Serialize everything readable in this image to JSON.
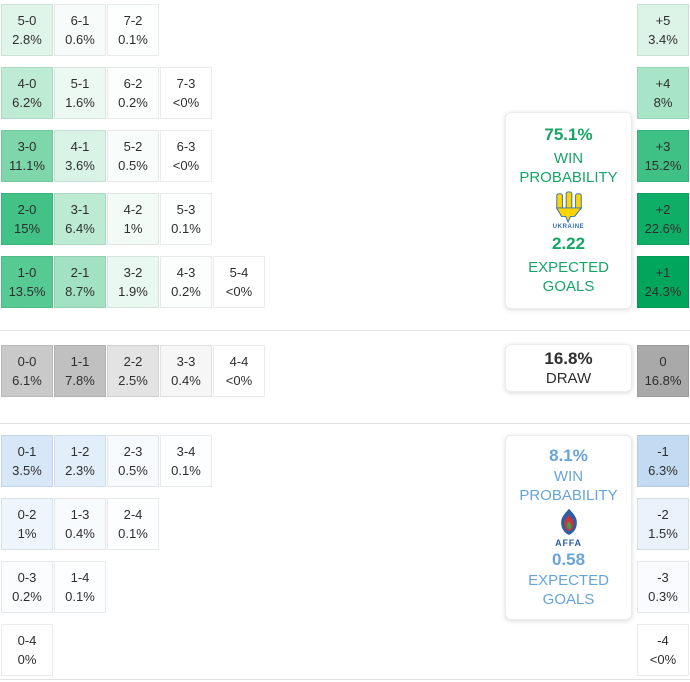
{
  "chart_data": {
    "type": "heatmap",
    "description": "Correct score probability matrix with goal-difference margins",
    "sections": {
      "home": {
        "rows": [
          [
            {
              "score": "5-0",
              "prob": "2.8%",
              "bg": "#e0f5ea"
            },
            {
              "score": "6-1",
              "prob": "0.6%",
              "bg": "#f7fcfa"
            },
            {
              "score": "7-2",
              "prob": "0.1%",
              "bg": "#fdfefe"
            }
          ],
          [
            {
              "score": "4-0",
              "prob": "6.2%",
              "bg": "#beebd3"
            },
            {
              "score": "5-1",
              "prob": "1.6%",
              "bg": "#ecf9f2"
            },
            {
              "score": "6-2",
              "prob": "0.2%",
              "bg": "#fcfefd"
            },
            {
              "score": "7-3",
              "prob": "<0%",
              "bg": "#ffffff"
            }
          ],
          [
            {
              "score": "3-0",
              "prob": "11.1%",
              "bg": "#7ed7ab"
            },
            {
              "score": "4-1",
              "prob": "3.6%",
              "bg": "#d9f3e6"
            },
            {
              "score": "5-2",
              "prob": "0.5%",
              "bg": "#f8fdfb"
            },
            {
              "score": "6-3",
              "prob": "<0%",
              "bg": "#ffffff"
            }
          ],
          [
            {
              "score": "2-0",
              "prob": "15%",
              "bg": "#42c287"
            },
            {
              "score": "3-1",
              "prob": "6.4%",
              "bg": "#bcead2"
            },
            {
              "score": "4-2",
              "prob": "1%",
              "bg": "#f3fbf7"
            },
            {
              "score": "5-3",
              "prob": "0.1%",
              "bg": "#fdfefe"
            }
          ],
          [
            {
              "score": "1-0",
              "prob": "13.5%",
              "bg": "#57ca93"
            },
            {
              "score": "2-1",
              "prob": "8.7%",
              "bg": "#a2e2c2"
            },
            {
              "score": "3-2",
              "prob": "1.9%",
              "bg": "#e9f8f0"
            },
            {
              "score": "4-3",
              "prob": "0.2%",
              "bg": "#fcfefd"
            },
            {
              "score": "5-4",
              "prob": "<0%",
              "bg": "#ffffff"
            }
          ]
        ],
        "margins": [
          {
            "label": "+5",
            "prob": "3.4%",
            "bg": "#dbf4e7"
          },
          {
            "label": "+4",
            "prob": "8%",
            "bg": "#a8e4c6"
          },
          {
            "label": "+3",
            "prob": "15.2%",
            "bg": "#3fc185"
          },
          {
            "label": "+2",
            "prob": "22.6%",
            "bg": "#0fae66"
          },
          {
            "label": "+1",
            "prob": "24.3%",
            "bg": "#00a65c"
          }
        ]
      },
      "draw": {
        "rows": [
          [
            {
              "score": "0-0",
              "prob": "6.1%",
              "bg": "#c9c9c9"
            },
            {
              "score": "1-1",
              "prob": "7.8%",
              "bg": "#c0c0c0"
            },
            {
              "score": "2-2",
              "prob": "2.5%",
              "bg": "#e3e3e3"
            },
            {
              "score": "3-3",
              "prob": "0.4%",
              "bg": "#f6f6f6"
            },
            {
              "score": "4-4",
              "prob": "<0%",
              "bg": "#ffffff"
            }
          ]
        ],
        "margins": [
          {
            "label": "0",
            "prob": "16.8%",
            "bg": "#a9a9a9"
          }
        ]
      },
      "away": {
        "rows": [
          [
            {
              "score": "0-1",
              "prob": "3.5%",
              "bg": "#d7e7f7"
            },
            {
              "score": "1-2",
              "prob": "2.3%",
              "bg": "#e2eef9"
            },
            {
              "score": "2-3",
              "prob": "0.5%",
              "bg": "#f6fafd"
            },
            {
              "score": "3-4",
              "prob": "0.1%",
              "bg": "#fdfeff"
            }
          ],
          [
            {
              "score": "0-2",
              "prob": "1%",
              "bg": "#eef5fc"
            },
            {
              "score": "1-3",
              "prob": "0.4%",
              "bg": "#f7fbfe"
            },
            {
              "score": "2-4",
              "prob": "0.1%",
              "bg": "#fdfeff"
            }
          ],
          [
            {
              "score": "0-3",
              "prob": "0.2%",
              "bg": "#fbfcfe"
            },
            {
              "score": "1-4",
              "prob": "0.1%",
              "bg": "#fdfeff"
            }
          ],
          [
            {
              "score": "0-4",
              "prob": "0%",
              "bg": "#ffffff"
            }
          ]
        ],
        "margins": [
          {
            "label": "-1",
            "prob": "6.3%",
            "bg": "#c2dbf2"
          },
          {
            "label": "-2",
            "prob": "1.5%",
            "bg": "#e9f1fb"
          },
          {
            "label": "-3",
            "prob": "0.3%",
            "bg": "#f9fbfe"
          },
          {
            "label": "-4",
            "prob": "<0%",
            "bg": "#ffffff"
          }
        ]
      }
    }
  },
  "panels": {
    "home": {
      "probability": "75.1%",
      "probability_label": "WIN PROBABILITY",
      "team": "UKRAINE",
      "expected_goals": "2.22",
      "expected_goals_label": "EXPECTED GOALS"
    },
    "draw": {
      "probability": "16.8%",
      "label": "DRAW"
    },
    "away": {
      "probability": "8.1%",
      "probability_label": "WIN PROBABILITY",
      "team": "AFFA",
      "expected_goals": "0.58",
      "expected_goals_label": "EXPECTED GOALS"
    }
  },
  "colors": {
    "home_accent": "#16a566",
    "away_accent": "#67a4da",
    "draw_text": "#2e2e2e",
    "ukraine_yellow": "#ffd500",
    "ukraine_blue": "#2f6db5",
    "affa_blue": "#2b5ea7",
    "affa_red": "#cf3339",
    "affa_green": "#3f9e49"
  }
}
